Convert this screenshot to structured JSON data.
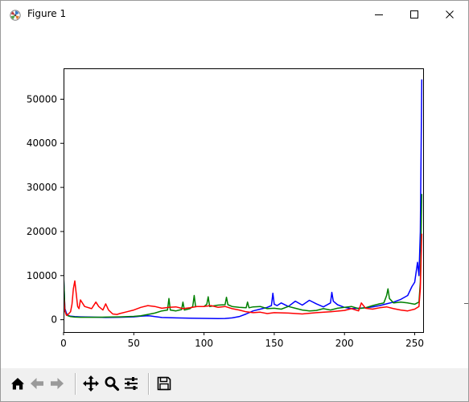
{
  "window": {
    "title": "Figure 1",
    "controls": {
      "minimize_icon": "minimize-icon",
      "maximize_icon": "maximize-icon",
      "close_icon": "close-icon"
    }
  },
  "toolbar": {
    "buttons": [
      {
        "icon": "home-icon"
      },
      {
        "icon": "back-arrow-icon"
      },
      {
        "icon": "forward-arrow-icon"
      },
      {
        "icon": "pan-icon"
      },
      {
        "icon": "zoom-icon"
      },
      {
        "icon": "configure-subplots-icon"
      },
      {
        "icon": "save-icon"
      }
    ]
  },
  "chart_data": {
    "type": "line",
    "title": "",
    "xlabel": "",
    "ylabel": "",
    "xlim": [
      0,
      256
    ],
    "ylim": [
      -2800,
      57000
    ],
    "xticks": [
      0,
      50,
      100,
      150,
      200,
      250
    ],
    "yticks": [
      0,
      10000,
      20000,
      30000,
      40000,
      50000
    ],
    "grid": false,
    "legend": "none",
    "series": [
      {
        "color": "#0000ff",
        "x": [
          0,
          1,
          2,
          3,
          5,
          8,
          12,
          20,
          30,
          40,
          50,
          55,
          60,
          62,
          65,
          70,
          80,
          90,
          100,
          110,
          115,
          120,
          125,
          130,
          135,
          140,
          145,
          148,
          149,
          150,
          152,
          155,
          160,
          165,
          170,
          175,
          180,
          185,
          190,
          191,
          192,
          195,
          200,
          205,
          210,
          215,
          220,
          225,
          230,
          235,
          240,
          245,
          248,
          250,
          252,
          253,
          254,
          255
        ],
        "y": [
          10000,
          2500,
          1500,
          1000,
          800,
          700,
          650,
          600,
          500,
          550,
          650,
          800,
          900,
          850,
          700,
          500,
          400,
          350,
          300,
          250,
          280,
          400,
          700,
          1300,
          2000,
          2400,
          2800,
          3200,
          6000,
          3500,
          3200,
          3800,
          3000,
          4200,
          3300,
          4400,
          3600,
          2900,
          3800,
          6200,
          4200,
          3400,
          2800,
          2500,
          2600,
          2700,
          2900,
          3200,
          3600,
          4000,
          4600,
          5500,
          7500,
          8500,
          13000,
          10000,
          20000,
          54500
        ]
      },
      {
        "color": "#008000",
        "x": [
          0,
          1,
          2,
          3,
          5,
          8,
          12,
          20,
          30,
          40,
          50,
          55,
          60,
          65,
          70,
          74,
          75,
          76,
          80,
          84,
          85,
          86,
          90,
          92,
          93,
          94,
          100,
          102,
          103,
          104,
          110,
          115,
          116,
          117,
          120,
          125,
          130,
          131,
          132,
          135,
          140,
          145,
          150,
          155,
          160,
          165,
          170,
          175,
          180,
          185,
          190,
          195,
          200,
          205,
          210,
          215,
          220,
          225,
          228,
          230,
          231,
          232,
          235,
          240,
          245,
          250,
          253,
          254,
          255
        ],
        "y": [
          10500,
          2000,
          1200,
          900,
          700,
          600,
          550,
          550,
          600,
          650,
          750,
          900,
          1200,
          1500,
          2000,
          2200,
          4800,
          2200,
          2000,
          2300,
          4000,
          2200,
          2500,
          3000,
          5500,
          3000,
          3000,
          3500,
          5200,
          3000,
          3300,
          3400,
          5100,
          3400,
          3000,
          2800,
          2700,
          4000,
          2700,
          2900,
          3000,
          2500,
          2600,
          2400,
          3000,
          2600,
          2200,
          2000,
          2100,
          2500,
          2200,
          2600,
          2800,
          3000,
          2500,
          2700,
          3200,
          3600,
          3800,
          5500,
          7000,
          4800,
          3800,
          4000,
          3800,
          3500,
          4000,
          8500,
          28500
        ]
      },
      {
        "color": "#ff0000",
        "x": [
          0,
          1,
          2,
          3,
          5,
          6,
          7,
          8,
          9,
          10,
          11,
          12,
          15,
          20,
          23,
          25,
          28,
          30,
          32,
          35,
          38,
          40,
          45,
          50,
          55,
          60,
          65,
          70,
          75,
          80,
          85,
          90,
          95,
          100,
          105,
          110,
          115,
          120,
          125,
          130,
          135,
          140,
          145,
          150,
          160,
          170,
          180,
          190,
          200,
          205,
          210,
          212,
          215,
          220,
          225,
          230,
          235,
          240,
          245,
          250,
          253,
          254,
          255
        ],
        "y": [
          5500,
          2000,
          1000,
          1100,
          1800,
          3500,
          7000,
          8800,
          6000,
          3000,
          2500,
          4500,
          3000,
          2500,
          4000,
          3000,
          2200,
          3600,
          2200,
          1300,
          1200,
          1400,
          1800,
          2200,
          2800,
          3200,
          3000,
          2600,
          2800,
          2900,
          2500,
          2700,
          3000,
          3000,
          3200,
          2800,
          3000,
          2500,
          2200,
          1800,
          1600,
          1700,
          1400,
          1600,
          1500,
          1300,
          1600,
          1800,
          2100,
          2500,
          2000,
          3800,
          2600,
          2400,
          2700,
          2900,
          2500,
          2200,
          2000,
          2400,
          3000,
          7000,
          19500
        ]
      }
    ]
  }
}
